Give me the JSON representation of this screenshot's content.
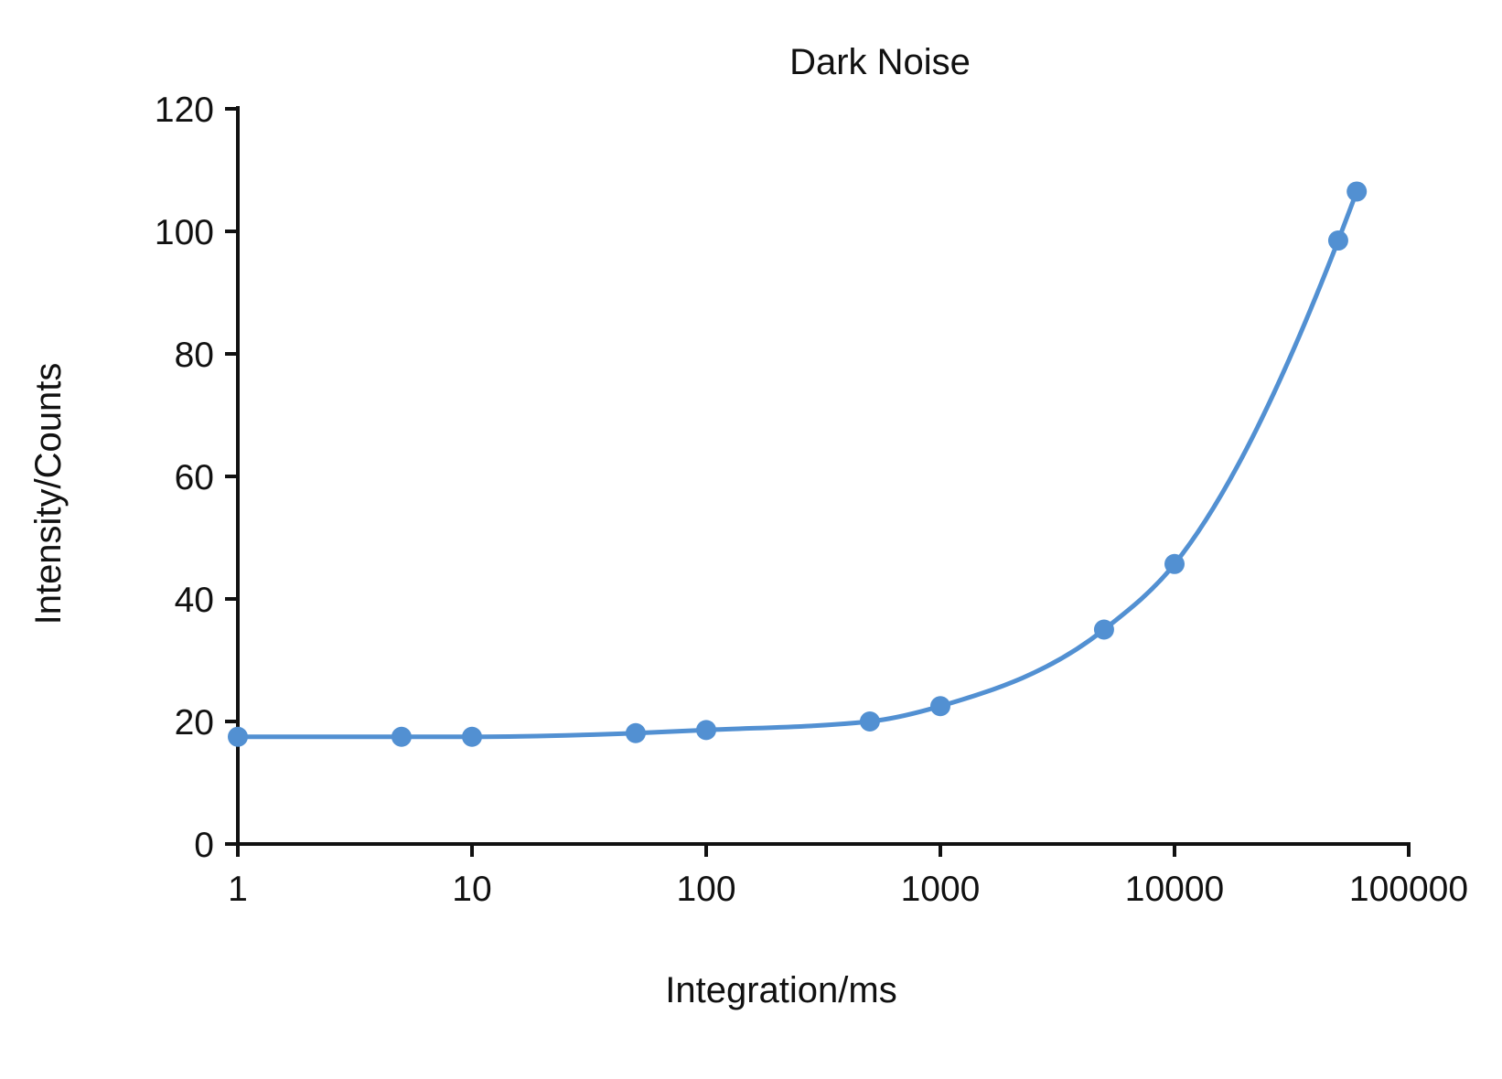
{
  "chart_data": {
    "type": "line",
    "title": "Dark Noise",
    "xlabel": "Integration/ms",
    "ylabel": "Intensity/Counts",
    "xscale": "log",
    "x": [
      1,
      5,
      10,
      50,
      100,
      500,
      1000,
      5000,
      10000,
      50000,
      60000
    ],
    "y": [
      17.5,
      17.5,
      17.5,
      18.1,
      18.6,
      20,
      22.5,
      35,
      45.7,
      98.5,
      106.5
    ],
    "x_ticks": [
      1,
      10,
      100,
      1000,
      10000,
      100000
    ],
    "x_tick_labels": [
      "1",
      "10",
      "100",
      "1000",
      "10000",
      "100000"
    ],
    "y_ticks": [
      0,
      20,
      40,
      60,
      80,
      100,
      120
    ],
    "y_tick_labels": [
      "0",
      "20",
      "40",
      "60",
      "80",
      "100",
      "120"
    ],
    "xlim": [
      1,
      100000
    ],
    "ylim": [
      0,
      120
    ],
    "grid": false,
    "legend_position": "none",
    "line_color": "#5290D2",
    "marker_color": "#5290D2",
    "marker": "circle",
    "axis_color": "#111111",
    "background_color": "#FFFFFF"
  }
}
